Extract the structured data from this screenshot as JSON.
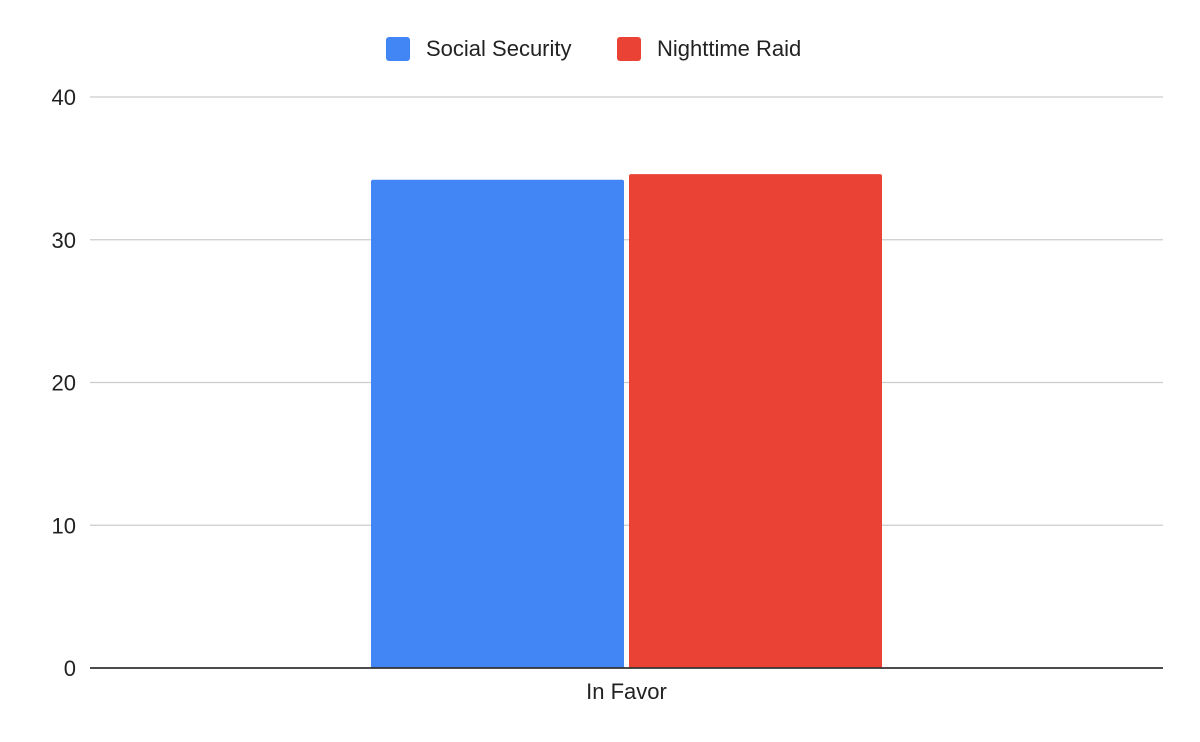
{
  "chart_data": {
    "type": "bar",
    "title": "",
    "xlabel": "",
    "ylabel": "",
    "categories": [
      "In Favor"
    ],
    "series": [
      {
        "name": "Social Security",
        "values": [
          34.2
        ],
        "color": "#4285f4"
      },
      {
        "name": "Nighttime Raid",
        "values": [
          34.6
        ],
        "color": "#ea4335"
      }
    ],
    "ylim": [
      0,
      40
    ],
    "yticks": [
      "0",
      "10",
      "20",
      "30",
      "40"
    ],
    "grid": true,
    "legend_position": "top-center"
  },
  "colors": {
    "gridline": "#cccccc",
    "axis": "#333333"
  }
}
